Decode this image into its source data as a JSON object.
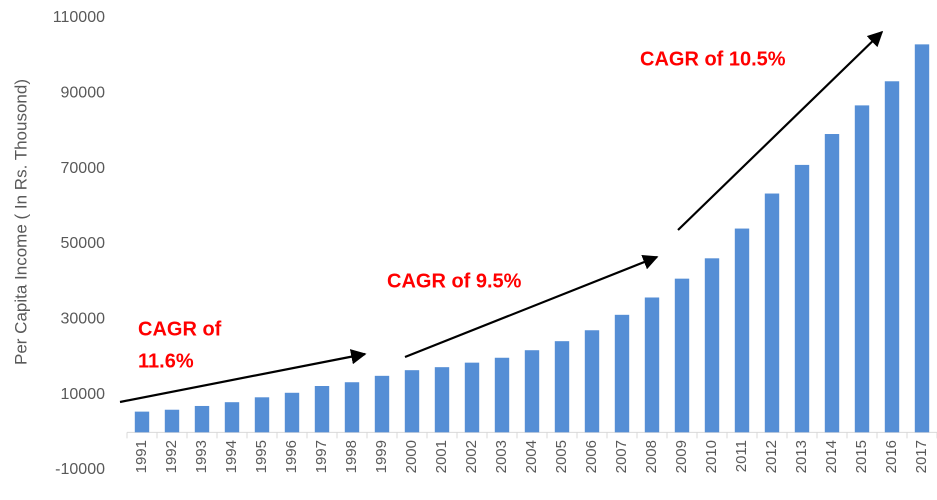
{
  "chart_data": {
    "type": "bar",
    "y_label": "Per Capita Income ( In Rs. Thousond)",
    "categories": [
      "1991",
      "1992",
      "1993",
      "1994",
      "1995",
      "1996",
      "1997",
      "1998",
      "1999",
      "2000",
      "2001",
      "2002",
      "2003",
      "2004",
      "2005",
      "2006",
      "2007",
      "2008",
      "2009",
      "2010",
      "2011",
      "2012",
      "2013",
      "2014",
      "2015",
      "2016",
      "2017"
    ],
    "values": [
      5500,
      6000,
      7000,
      8000,
      9300,
      10500,
      12300,
      13300,
      15000,
      16500,
      17300,
      18500,
      19800,
      21800,
      24200,
      27100,
      31200,
      35800,
      40800,
      46200,
      54100,
      63400,
      71000,
      79200,
      86800,
      93200,
      103000
    ],
    "color": "#558ed5",
    "ylim": [
      -10000,
      110000
    ],
    "yticks": [
      -10000,
      10000,
      30000,
      50000,
      70000,
      90000,
      110000
    ],
    "grid": false,
    "annotations": [
      [
        "CAGR of",
        "11.6%"
      ],
      [
        "CAGR of 9.5%"
      ],
      [
        "CAGR of 10.5%"
      ]
    ],
    "annotation_color": "#ff0000"
  }
}
